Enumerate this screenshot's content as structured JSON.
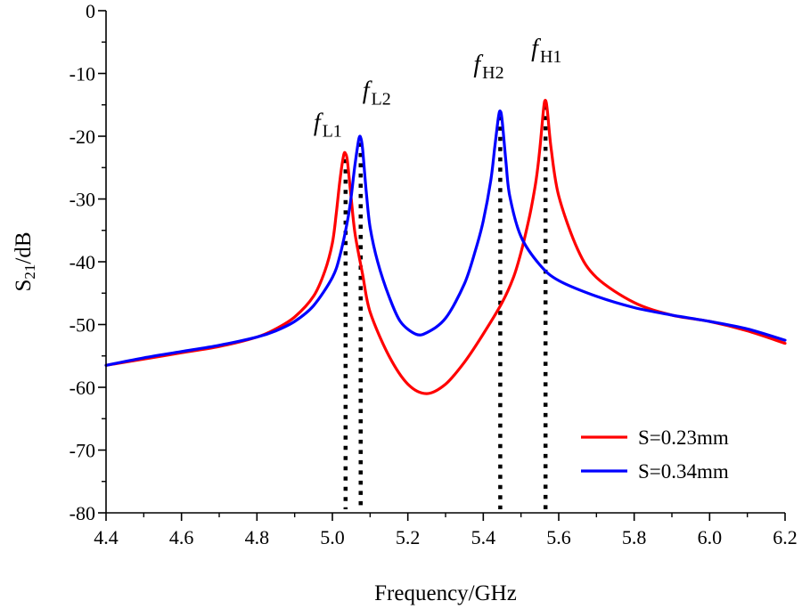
{
  "chart_data": {
    "type": "line",
    "title": "",
    "xlabel": "Frequency/GHz",
    "ylabel": {
      "main": "S",
      "sub": "21",
      "rest": "/dB"
    },
    "xlim": [
      4.4,
      6.2
    ],
    "ylim": [
      -80,
      0
    ],
    "xticks": [
      "4.4",
      "4.6",
      "4.8",
      "5.0",
      "5.2",
      "5.4",
      "5.6",
      "5.8",
      "6.0",
      "6.2"
    ],
    "yticks": [
      "0",
      "-10",
      "-20",
      "-30",
      "-40",
      "-50",
      "-60",
      "-70",
      "-80"
    ],
    "series": [
      {
        "name": "S=0.23mm",
        "color": "#ff0000",
        "x": [
          4.4,
          4.5,
          4.6,
          4.7,
          4.8,
          4.85,
          4.9,
          4.95,
          4.98,
          5.0,
          5.01,
          5.02,
          5.03,
          5.035,
          5.04,
          5.05,
          5.06,
          5.08,
          5.1,
          5.15,
          5.2,
          5.25,
          5.3,
          5.35,
          5.4,
          5.45,
          5.48,
          5.5,
          5.52,
          5.53,
          5.54,
          5.55,
          5.56,
          5.565,
          5.57,
          5.58,
          5.6,
          5.65,
          5.7,
          5.8,
          5.9,
          6.0,
          6.1,
          6.2
        ],
        "y": [
          -56.5,
          -55.5,
          -54.5,
          -53.5,
          -52.0,
          -50.7,
          -48.8,
          -45.5,
          -41.5,
          -37.0,
          -32.5,
          -27.0,
          -23.0,
          -22.8,
          -24.0,
          -30.0,
          -35.5,
          -42.0,
          -48.0,
          -55.0,
          -59.5,
          -61.0,
          -59.5,
          -56.0,
          -51.5,
          -46.5,
          -42.5,
          -38.5,
          -33.5,
          -30.5,
          -27.0,
          -22.0,
          -15.5,
          -14.3,
          -16.0,
          -22.0,
          -29.5,
          -38.0,
          -42.5,
          -46.5,
          -48.5,
          -49.5,
          -51.0,
          -53.0
        ]
      },
      {
        "name": "S=0.34mm",
        "color": "#0000ff",
        "x": [
          4.4,
          4.5,
          4.6,
          4.7,
          4.8,
          4.85,
          4.9,
          4.95,
          5.0,
          5.02,
          5.04,
          5.05,
          5.06,
          5.07,
          5.075,
          5.08,
          5.09,
          5.1,
          5.12,
          5.15,
          5.18,
          5.22,
          5.25,
          5.3,
          5.35,
          5.38,
          5.4,
          5.42,
          5.43,
          5.44,
          5.445,
          5.45,
          5.46,
          5.47,
          5.5,
          5.55,
          5.6,
          5.7,
          5.8,
          5.9,
          6.0,
          6.1,
          6.2
        ],
        "y": [
          -56.5,
          -55.3,
          -54.3,
          -53.3,
          -52.0,
          -51.0,
          -49.5,
          -47.0,
          -42.5,
          -39.0,
          -33.5,
          -29.5,
          -24.5,
          -20.5,
          -20.2,
          -22.0,
          -29.0,
          -34.5,
          -40.0,
          -45.5,
          -49.5,
          -51.5,
          -51.3,
          -49.0,
          -43.5,
          -38.0,
          -33.5,
          -27.0,
          -22.0,
          -17.0,
          -16.0,
          -17.5,
          -24.0,
          -29.5,
          -36.0,
          -40.5,
          -43.0,
          -45.5,
          -47.3,
          -48.5,
          -49.5,
          -50.7,
          -52.5
        ]
      }
    ],
    "markers": [
      {
        "base": "f",
        "sub": "L1",
        "x": 5.035,
        "y": -22.8
      },
      {
        "base": "f",
        "sub": "L2",
        "x": 5.075,
        "y": -20.2
      },
      {
        "base": "f",
        "sub": "H2",
        "x": 5.445,
        "y": -16.0
      },
      {
        "base": "f",
        "sub": "H1",
        "x": 5.565,
        "y": -14.3
      }
    ],
    "legend_position": "bottom-right"
  }
}
